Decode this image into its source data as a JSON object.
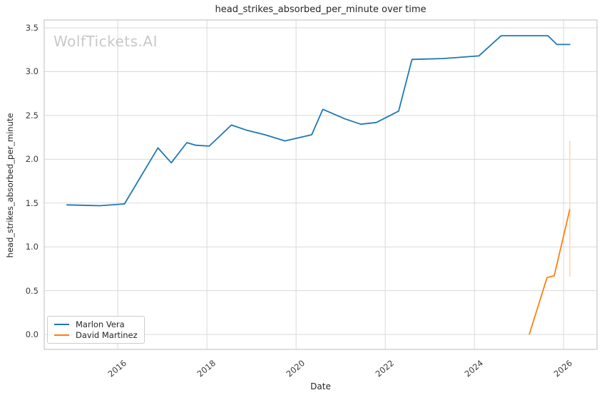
{
  "watermark": "WolfTickets.AI",
  "style": {
    "grid_color": "#d9d9d9",
    "spine_color": "#c9c9c9",
    "text_color": "#262626",
    "watermark_color": "#c8c8c8"
  },
  "chart_data": {
    "type": "line",
    "title": "head_strikes_absorbed_per_minute over time",
    "xlabel": "Date",
    "ylabel": "head_strikes_absorbed_per_minute",
    "grid": true,
    "legend_position": "lower left",
    "xlim": [
      2014.35,
      2026.75
    ],
    "ylim": [
      -0.17,
      3.59
    ],
    "xticks": [
      2016,
      2018,
      2020,
      2022,
      2024,
      2026
    ],
    "yticks": [
      0.0,
      0.5,
      1.0,
      1.5,
      2.0,
      2.5,
      3.0,
      3.5
    ],
    "series": [
      {
        "name": "Marlon Vera",
        "color": "#1f77b4",
        "points": [
          [
            2014.85,
            1.48
          ],
          [
            2015.6,
            1.47
          ],
          [
            2016.15,
            1.49
          ],
          [
            2016.9,
            2.13
          ],
          [
            2017.2,
            1.96
          ],
          [
            2017.55,
            2.19
          ],
          [
            2017.75,
            2.16
          ],
          [
            2018.05,
            2.15
          ],
          [
            2018.55,
            2.39
          ],
          [
            2018.9,
            2.33
          ],
          [
            2019.3,
            2.28
          ],
          [
            2019.75,
            2.21
          ],
          [
            2020.35,
            2.28
          ],
          [
            2020.6,
            2.57
          ],
          [
            2021.1,
            2.46
          ],
          [
            2021.45,
            2.4
          ],
          [
            2021.8,
            2.42
          ],
          [
            2022.3,
            2.55
          ],
          [
            2022.6,
            3.14
          ],
          [
            2023.3,
            3.15
          ],
          [
            2024.1,
            3.18
          ],
          [
            2024.6,
            3.41
          ],
          [
            2025.65,
            3.41
          ],
          [
            2025.85,
            3.31
          ],
          [
            2026.15,
            3.31
          ]
        ]
      },
      {
        "name": "David Martinez",
        "color": "#ff7f0e",
        "points": [
          [
            2025.23,
            0.0
          ],
          [
            2025.63,
            0.65
          ],
          [
            2025.79,
            0.67
          ],
          [
            2026.14,
            1.43
          ]
        ],
        "errorbar": {
          "x": 2026.14,
          "low": 0.66,
          "high": 2.21,
          "color": "#fad7b5"
        }
      }
    ]
  }
}
